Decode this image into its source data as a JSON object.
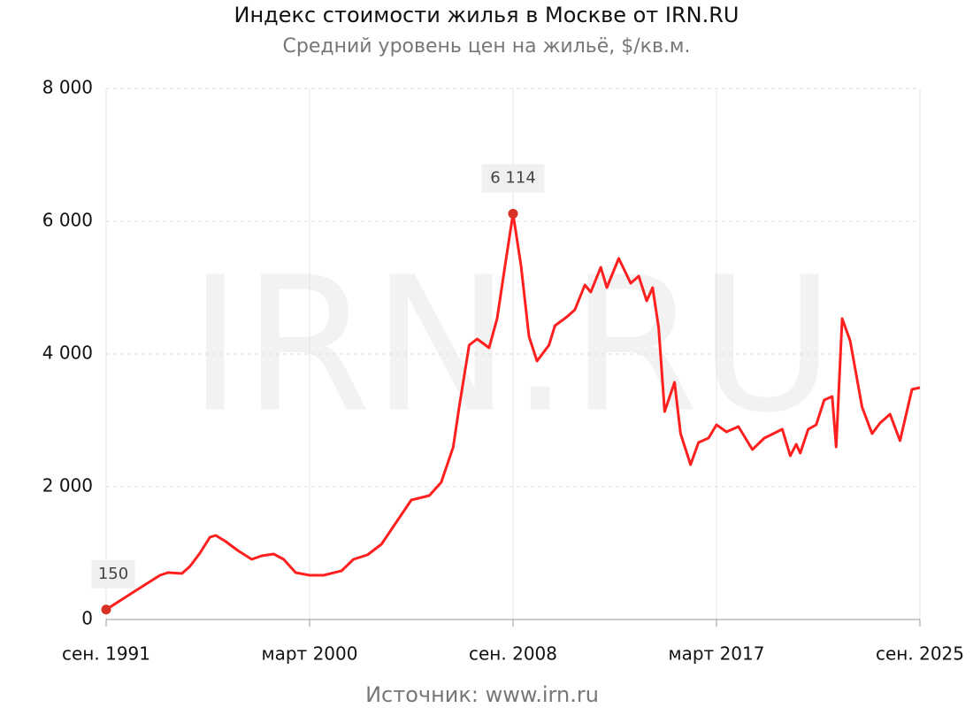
{
  "chart_data": {
    "type": "line",
    "title": "Индекс стоимости жилья в Москве от IRN.RU",
    "subtitle": "Средний уровень цен на жильё, $/кв.м.",
    "source": "Источник: www.irn.ru",
    "watermark": "IRN.RU",
    "color": "#ff1f1f",
    "marker_color": "#d93025",
    "grid": true,
    "x": [
      "1991-09",
      "1992-10",
      "1993-12",
      "1994-04",
      "1994-11",
      "1995-03",
      "1995-08",
      "1996-01",
      "1996-04",
      "1996-09",
      "1997-03",
      "1997-10",
      "1998-03",
      "1998-09",
      "1999-02",
      "1999-08",
      "2000-03",
      "2000-10",
      "2001-07",
      "2002-01",
      "2002-08",
      "2003-03",
      "2003-09",
      "2004-06",
      "2005-03",
      "2005-09",
      "2006-03",
      "2006-06",
      "2006-11",
      "2007-03",
      "2007-09",
      "2008-01",
      "2008-05",
      "2008-09",
      "2009-01",
      "2009-05",
      "2009-09",
      "2010-03",
      "2010-06",
      "2010-12",
      "2011-04",
      "2011-09",
      "2011-12",
      "2012-05",
      "2012-08",
      "2013-02",
      "2013-08",
      "2013-12",
      "2014-04",
      "2014-07",
      "2014-10",
      "2015-01",
      "2015-06",
      "2015-09",
      "2016-02",
      "2016-06",
      "2016-11",
      "2017-03",
      "2017-08",
      "2018-02",
      "2018-09",
      "2019-03",
      "2019-12",
      "2020-04",
      "2020-07",
      "2020-09",
      "2021-01",
      "2021-05",
      "2021-09",
      "2022-01",
      "2022-03",
      "2022-06",
      "2022-10",
      "2023-04",
      "2023-09",
      "2024-01",
      "2024-06",
      "2024-11",
      "2025-05",
      "2025-09"
    ],
    "values": [
      150,
      400,
      667,
      707,
      693,
      800,
      1000,
      1240,
      1267,
      1173,
      1040,
      907,
      960,
      987,
      907,
      707,
      667,
      667,
      733,
      907,
      973,
      1133,
      1400,
      1800,
      1867,
      2067,
      2600,
      3200,
      4133,
      4227,
      4093,
      4533,
      5333,
      6114,
      5333,
      4267,
      3893,
      4133,
      4427,
      4560,
      4667,
      5040,
      4933,
      5307,
      5000,
      5440,
      5067,
      5173,
      4800,
      5000,
      4400,
      3133,
      3573,
      2800,
      2333,
      2667,
      2733,
      2933,
      2827,
      2907,
      2560,
      2733,
      2867,
      2467,
      2640,
      2507,
      2867,
      2933,
      3307,
      3360,
      2600,
      4533,
      4200,
      3200,
      2800,
      2960,
      3093,
      2693,
      3467,
      3493
    ],
    "value_labels": [
      "150",
      null,
      null,
      null,
      null,
      null,
      null,
      null,
      null,
      null,
      null,
      null,
      null,
      null,
      null,
      null,
      null,
      null,
      null,
      null,
      null,
      null,
      null,
      null,
      null,
      null,
      null,
      null,
      null,
      null,
      null,
      null,
      null,
      "6 114",
      null,
      null,
      null,
      null,
      null,
      null,
      null,
      null,
      null,
      null,
      null,
      null,
      null,
      null,
      null,
      null,
      null,
      null,
      null,
      null,
      null,
      null,
      null,
      null,
      null,
      null,
      null,
      null,
      null,
      null,
      null,
      null,
      null,
      null,
      null,
      null,
      null,
      null,
      null,
      null,
      null,
      null,
      null,
      null,
      null,
      null
    ],
    "xlim": [
      "1991-09",
      "2025-09"
    ],
    "xticks": [
      {
        "value": "1991-09",
        "label": "сен. 1991"
      },
      {
        "value": "2000-03",
        "label": "март 2000"
      },
      {
        "value": "2008-09",
        "label": "сен. 2008"
      },
      {
        "value": "2017-03",
        "label": "март 2017"
      },
      {
        "value": "2025-09",
        "label": "сен. 2025"
      }
    ],
    "ylim": [
      0,
      8000
    ],
    "yticks": [
      0,
      {
        "value": 2000,
        "label": "2 000"
      },
      {
        "value": 4000,
        "label": "4 000"
      },
      {
        "value": 6000,
        "label": "6 000"
      },
      {
        "value": 8000,
        "label": "8 000"
      }
    ]
  }
}
